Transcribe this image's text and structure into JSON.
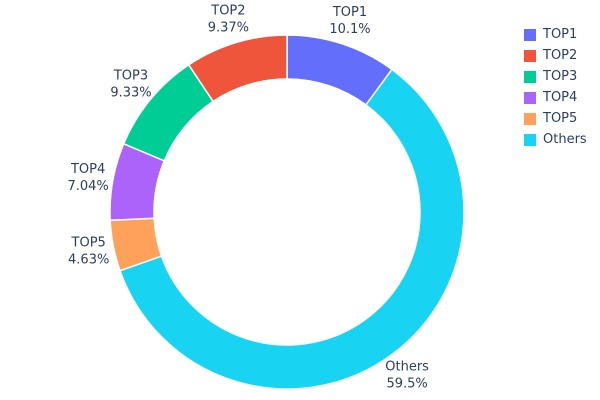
{
  "chart_data": {
    "type": "pie",
    "subtype": "donut",
    "hole": 0.75,
    "title": "",
    "label_position": "outside",
    "text_color": "#2a3f5f",
    "background": "#ffffff",
    "legend_position": "top-right",
    "series": [
      {
        "name": "TOP1",
        "value": 10.1,
        "percent_label": "10.1%",
        "color": "#636EFA"
      },
      {
        "name": "TOP2",
        "value": 9.37,
        "percent_label": "9.37%",
        "color": "#EF553B"
      },
      {
        "name": "TOP3",
        "value": 9.33,
        "percent_label": "9.33%",
        "color": "#00CC96"
      },
      {
        "name": "TOP4",
        "value": 7.04,
        "percent_label": "7.04%",
        "color": "#AB63FA"
      },
      {
        "name": "TOP5",
        "value": 4.63,
        "percent_label": "4.63%",
        "color": "#FFA15A"
      },
      {
        "name": "Others",
        "value": 59.5,
        "percent_label": "59.5%",
        "color": "#19D3F3"
      }
    ]
  }
}
